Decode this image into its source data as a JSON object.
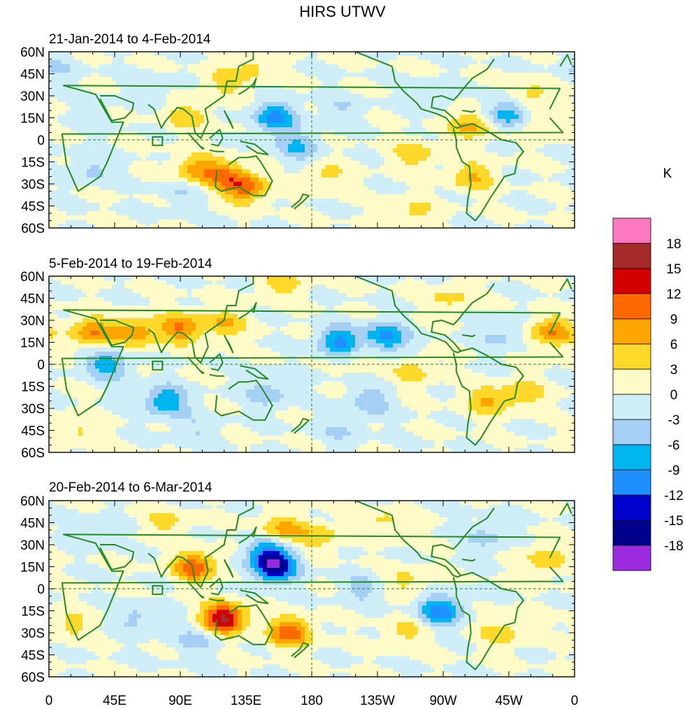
{
  "title": "HIRS UTWV",
  "colorbar": {
    "unit": "K",
    "labels": [
      "18",
      "15",
      "12",
      "9",
      "6",
      "3",
      "0",
      "-3",
      "-6",
      "-9",
      "-12",
      "-15",
      "-18"
    ],
    "colors_top_to_bottom": [
      "#ff78c0",
      "#a52a2a",
      "#d40000",
      "#ff6a00",
      "#ffa500",
      "#ffd82a",
      "#fffbc8",
      "#cfeef8",
      "#a6cff5",
      "#00b4f0",
      "#1e90ff",
      "#0000cd",
      "#00008b",
      "#9a2be0"
    ]
  },
  "map": {
    "coast_color": "#228b22",
    "lat_labels": [
      "60N",
      "45N",
      "30N",
      "15N",
      "0",
      "15S",
      "30S",
      "45S",
      "60S"
    ],
    "lon_labels": [
      "0",
      "45E",
      "90E",
      "135E",
      "180",
      "135W",
      "90W",
      "45W",
      "0"
    ]
  },
  "panels": [
    {
      "period": "21-Jan-2014 to 4-Feb-2014",
      "anomalies": [
        {
          "lon": -22,
          "lat": 12,
          "v": 4
        },
        {
          "lon": 5,
          "lat": 48,
          "v": -3
        },
        {
          "lon": 30,
          "lat": 15,
          "v": -2
        },
        {
          "lon": 70,
          "lat": 35,
          "v": -3
        },
        {
          "lon": 95,
          "lat": 16,
          "v": 5
        },
        {
          "lon": 120,
          "lat": 38,
          "v": 4
        },
        {
          "lon": 140,
          "lat": 50,
          "v": 4
        },
        {
          "lon": 155,
          "lat": 15,
          "v": -10
        },
        {
          "lon": 200,
          "lat": 20,
          "v": -3
        },
        {
          "lon": 120,
          "lat": -24,
          "v": 8
        },
        {
          "lon": 135,
          "lat": -33,
          "v": 10
        },
        {
          "lon": 100,
          "lat": -20,
          "v": 7
        },
        {
          "lon": 90,
          "lat": -35,
          "v": -3
        },
        {
          "lon": 190,
          "lat": -25,
          "v": 4
        },
        {
          "lon": 250,
          "lat": -10,
          "v": 5
        },
        {
          "lon": 290,
          "lat": -25,
          "v": 6
        },
        {
          "lon": 260,
          "lat": 30,
          "v": -3
        },
        {
          "lon": 290,
          "lat": 10,
          "v": 7
        },
        {
          "lon": 315,
          "lat": 18,
          "v": -9
        },
        {
          "lon": 330,
          "lat": 30,
          "v": 5
        },
        {
          "lon": 30,
          "lat": -20,
          "v": -4
        },
        {
          "lon": 250,
          "lat": -50,
          "v": 4
        },
        {
          "lon": 170,
          "lat": -5,
          "v": -6
        }
      ]
    },
    {
      "period": "5-Feb-2014 to 19-Feb-2014",
      "anomalies": [
        {
          "lon": 30,
          "lat": 22,
          "v": 9
        },
        {
          "lon": 60,
          "lat": 22,
          "v": 8
        },
        {
          "lon": 90,
          "lat": 25,
          "v": 9
        },
        {
          "lon": 120,
          "lat": 28,
          "v": 6
        },
        {
          "lon": 345,
          "lat": 22,
          "v": 9
        },
        {
          "lon": 40,
          "lat": 0,
          "v": -8
        },
        {
          "lon": 80,
          "lat": -25,
          "v": -9
        },
        {
          "lon": 200,
          "lat": 15,
          "v": -11
        },
        {
          "lon": 230,
          "lat": 18,
          "v": -11
        },
        {
          "lon": 215,
          "lat": 10,
          "v": 4
        },
        {
          "lon": 160,
          "lat": 55,
          "v": 5
        },
        {
          "lon": 150,
          "lat": -20,
          "v": -5
        },
        {
          "lon": 300,
          "lat": -25,
          "v": 6
        },
        {
          "lon": 325,
          "lat": -20,
          "v": 5
        },
        {
          "lon": 220,
          "lat": -25,
          "v": -5
        },
        {
          "lon": 310,
          "lat": 20,
          "v": -4
        },
        {
          "lon": 20,
          "lat": -45,
          "v": 4
        },
        {
          "lon": 275,
          "lat": 45,
          "v": 4
        },
        {
          "lon": 200,
          "lat": -45,
          "v": -3
        },
        {
          "lon": 100,
          "lat": -45,
          "v": -3
        },
        {
          "lon": 250,
          "lat": -5,
          "v": 4
        }
      ]
    },
    {
      "period": "20-Feb-2014 to 6-Mar-2014",
      "anomalies": [
        {
          "lon": 155,
          "lat": 15,
          "v": -16
        },
        {
          "lon": 150,
          "lat": 25,
          "v": -8
        },
        {
          "lon": 100,
          "lat": 15,
          "v": 11
        },
        {
          "lon": 160,
          "lat": 40,
          "v": 7
        },
        {
          "lon": 185,
          "lat": 35,
          "v": 5
        },
        {
          "lon": 120,
          "lat": -20,
          "v": 16
        },
        {
          "lon": 165,
          "lat": -30,
          "v": 11
        },
        {
          "lon": 268,
          "lat": -15,
          "v": -11
        },
        {
          "lon": 300,
          "lat": 35,
          "v": -4
        },
        {
          "lon": 340,
          "lat": 20,
          "v": 5
        },
        {
          "lon": 15,
          "lat": -25,
          "v": 4
        },
        {
          "lon": 30,
          "lat": 40,
          "v": -3
        },
        {
          "lon": 60,
          "lat": -20,
          "v": -4
        },
        {
          "lon": 215,
          "lat": 0,
          "v": -4
        },
        {
          "lon": 245,
          "lat": -30,
          "v": 4
        },
        {
          "lon": 310,
          "lat": -30,
          "v": 5
        },
        {
          "lon": 80,
          "lat": 45,
          "v": 4
        },
        {
          "lon": 230,
          "lat": 45,
          "v": 4
        },
        {
          "lon": 100,
          "lat": -35,
          "v": -4
        },
        {
          "lon": 245,
          "lat": 5,
          "v": 4
        }
      ]
    }
  ]
}
